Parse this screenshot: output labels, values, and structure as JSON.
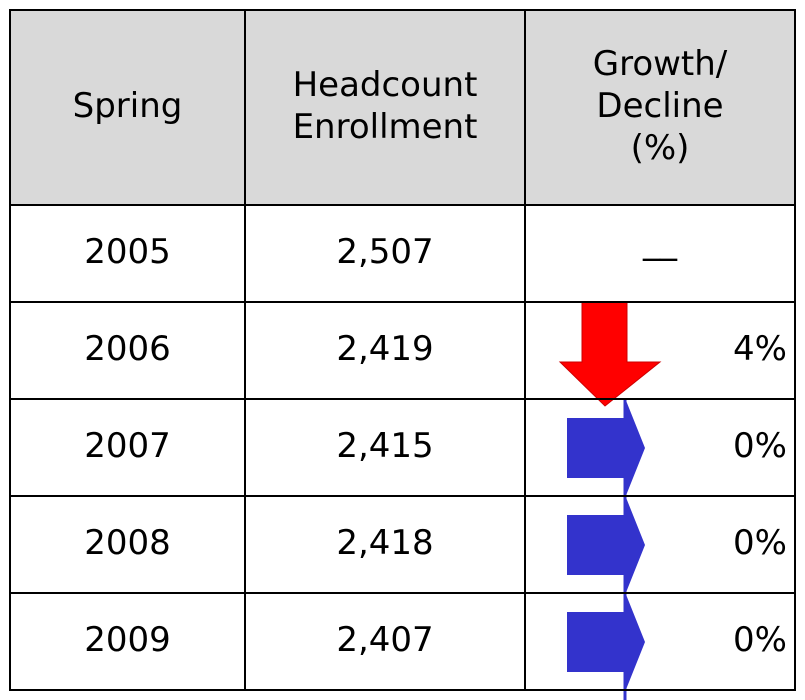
{
  "table": {
    "header": [
      "Spring",
      "Headcount|Enrollment",
      "Growth/|Decline|(%)"
    ],
    "header_lines": [
      [
        "Spring"
      ],
      [
        "Headcount",
        "Enrollment"
      ],
      [
        "Growth/",
        "Decline",
        "(%)"
      ]
    ],
    "rows": [
      [
        "2005",
        "2,507",
        "__"
      ],
      [
        "2006",
        "2,419",
        "4%"
      ],
      [
        "2007",
        "2,415",
        "0%"
      ],
      [
        "2008",
        "2,418",
        "0%"
      ],
      [
        "2009",
        "2,407",
        "0%"
      ]
    ]
  }
}
